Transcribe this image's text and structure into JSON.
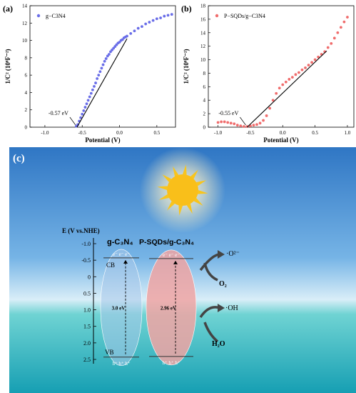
{
  "chart_data": [
    {
      "panel": "(a)",
      "type": "scatter",
      "legend": {
        "label": "g−C3N4",
        "color": "#6a6ee8",
        "position": "top-left"
      },
      "xlabel": "Potential (V)",
      "ylabel": "1/C² (10⁸F⁻²)",
      "xlim": [
        -1.2,
        0.75
      ],
      "ylim": [
        0,
        14
      ],
      "xticks": [
        "-1.0",
        "-0.5",
        "0.0",
        "0.5"
      ],
      "yticks": [
        "0",
        "2",
        "4",
        "6",
        "8",
        "10",
        "12",
        "14"
      ],
      "annotation": "-0.57 eV",
      "tangent": [
        [
          -0.57,
          0.0
        ],
        [
          0.1,
          10.2
        ]
      ],
      "x": [
        -0.58,
        -0.56,
        -0.54,
        -0.52,
        -0.5,
        -0.48,
        -0.46,
        -0.44,
        -0.42,
        -0.4,
        -0.38,
        -0.36,
        -0.34,
        -0.32,
        -0.3,
        -0.28,
        -0.26,
        -0.24,
        -0.22,
        -0.2,
        -0.18,
        -0.16,
        -0.14,
        -0.12,
        -0.1,
        -0.08,
        -0.06,
        -0.04,
        -0.02,
        0.0,
        0.02,
        0.04,
        0.06,
        0.08,
        0.1,
        0.15,
        0.2,
        0.25,
        0.3,
        0.35,
        0.4,
        0.45,
        0.5,
        0.55,
        0.6,
        0.65,
        0.7
      ],
      "y": [
        0.1,
        0.3,
        0.7,
        1.1,
        1.5,
        1.9,
        2.3,
        2.7,
        3.1,
        3.5,
        3.9,
        4.3,
        4.7,
        5.1,
        5.6,
        6.0,
        6.4,
        6.8,
        7.2,
        7.6,
        7.9,
        8.2,
        8.4,
        8.7,
        8.9,
        9.1,
        9.3,
        9.5,
        9.7,
        9.8,
        10.0,
        10.1,
        10.3,
        10.4,
        10.5,
        10.8,
        11.1,
        11.4,
        11.6,
        11.9,
        12.1,
        12.3,
        12.5,
        12.6,
        12.8,
        12.9,
        13.0
      ]
    },
    {
      "panel": "(b)",
      "type": "scatter",
      "legend": {
        "label": "P−SQDs/g−C3N4",
        "color": "#f06d6d",
        "position": "top-left"
      },
      "xlabel": "Potential (V)",
      "ylabel": "1/C² (10⁸F⁻²)",
      "xlim": [
        -1.15,
        1.1
      ],
      "ylim": [
        0,
        18
      ],
      "xticks": [
        "-1.0",
        "-0.5",
        "0.0",
        "0.5",
        "1.0"
      ],
      "yticks": [
        "0",
        "2",
        "4",
        "6",
        "8",
        "10",
        "12",
        "14",
        "16",
        "18"
      ],
      "annotation": "-0.55 eV",
      "tangent": [
        [
          -0.55,
          0.0
        ],
        [
          0.68,
          11.3
        ]
      ],
      "x": [
        -1.0,
        -0.95,
        -0.9,
        -0.85,
        -0.8,
        -0.75,
        -0.7,
        -0.65,
        -0.6,
        -0.55,
        -0.5,
        -0.45,
        -0.4,
        -0.35,
        -0.3,
        -0.25,
        -0.2,
        -0.15,
        -0.1,
        -0.05,
        0.0,
        0.05,
        0.1,
        0.15,
        0.2,
        0.25,
        0.3,
        0.35,
        0.4,
        0.45,
        0.5,
        0.55,
        0.6,
        0.65,
        0.7,
        0.75,
        0.8,
        0.85,
        0.9,
        0.95,
        1.0
      ],
      "y": [
        0.7,
        0.8,
        0.8,
        0.7,
        0.6,
        0.5,
        0.3,
        0.2,
        0.1,
        0.1,
        0.2,
        0.3,
        0.4,
        0.6,
        1.0,
        1.7,
        2.8,
        4.0,
        5.0,
        5.8,
        6.3,
        6.7,
        7.1,
        7.4,
        7.8,
        8.1,
        8.5,
        8.8,
        9.2,
        9.6,
        10.0,
        10.4,
        10.8,
        11.2,
        11.8,
        12.4,
        13.2,
        14.0,
        14.8,
        15.6,
        16.3
      ]
    },
    {
      "panel": "(c)",
      "type": "diagram",
      "axis_title": "E (V vs.NHE)",
      "ylim": [
        -1.0,
        2.5
      ],
      "yticks": [
        "-1.0",
        "-0.5",
        "0",
        "0.5",
        "1.0",
        "1.5",
        "2.0",
        "2.5"
      ],
      "bands": [
        {
          "title": "g-C₃N₄",
          "CB": -0.57,
          "VB": 2.43,
          "gap_label": "3.0 eV",
          "color": "#a9c8ea"
        },
        {
          "title": "P-SQDs/g-C₃N₄",
          "CB": -0.55,
          "VB": 2.41,
          "gap_label": "2.96 eV",
          "color": "#f0a5a3"
        }
      ],
      "cb_label": "CB",
      "vb_label": "VB",
      "electrons": "e⁻ e⁻ e⁻",
      "holes": "h⁺ h⁺ h⁺",
      "reactions": [
        {
          "reactant": "O₂",
          "product": "·O²⁻"
        },
        {
          "reactant": "H₂O",
          "product": "·OH"
        }
      ]
    }
  ]
}
